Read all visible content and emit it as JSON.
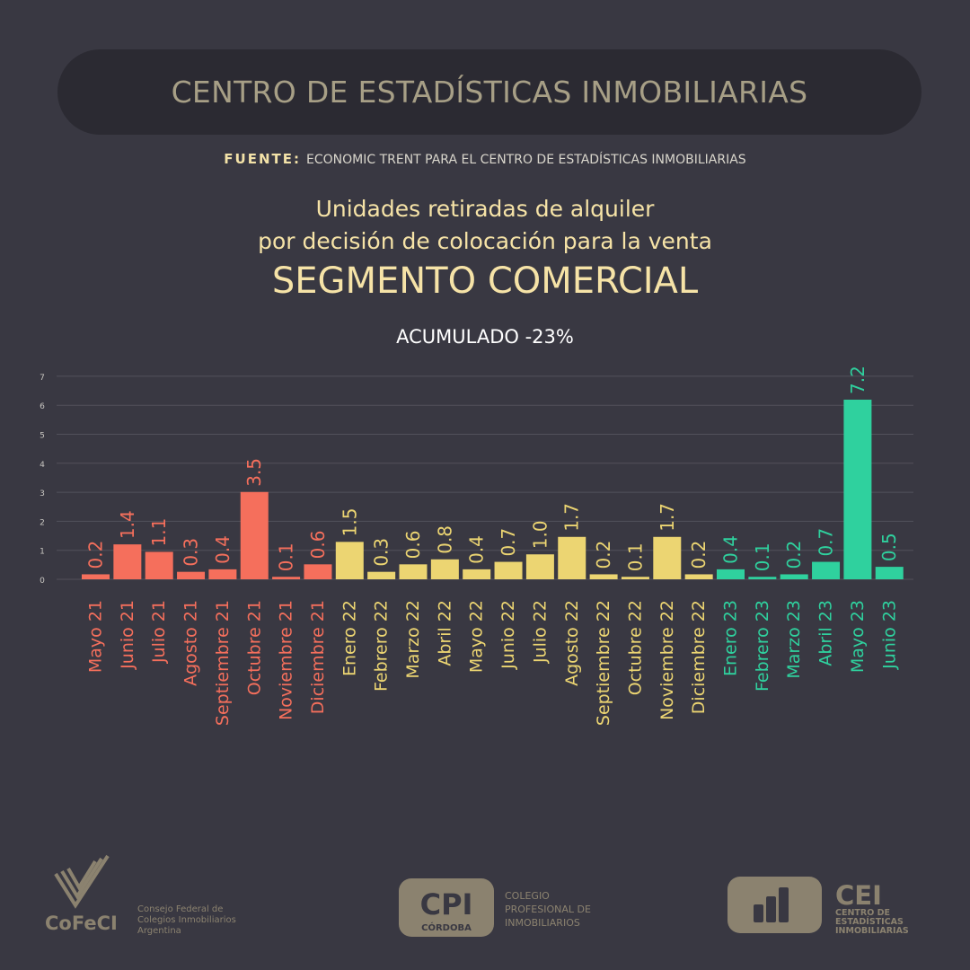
{
  "header": {
    "title": "CENTRO DE ESTADÍSTICAS INMOBILIARIAS"
  },
  "source": {
    "label": "FUENTE:",
    "text": "ECONOMIC TRENT PARA EL CENTRO DE ESTADÍSTICAS INMOBILIARIAS"
  },
  "titles": {
    "line1": "Unidades retiradas de alquiler",
    "line2": "por decisión de colocación para la venta",
    "segment": "SEGMENTO COMERCIAL",
    "accumulated": "ACUMULADO -23%"
  },
  "colors": {
    "y2021": "#f56f5c",
    "y2022": "#ecd572",
    "y2023": "#2fd19e",
    "background": "#393842"
  },
  "chart_data": {
    "type": "bar",
    "title": "Unidades retiradas de alquiler por decisión de colocación para la venta — SEGMENTO COMERCIAL",
    "xlabel": "",
    "ylabel": "",
    "ylim": [
      0,
      7
    ],
    "yticks": [
      0,
      1,
      2,
      3,
      4,
      5,
      6,
      7
    ],
    "grid": true,
    "categories": [
      "Mayo 21",
      "Junio 21",
      "Julio 21",
      "Agosto 21",
      "Septiembre 21",
      "Octubre 21",
      "Noviembre 21",
      "Diciembre 21",
      "Enero 22",
      "Febrero 22",
      "Marzo 22",
      "Abril 22",
      "Mayo 22",
      "Junio 22",
      "Julio 22",
      "Agosto 22",
      "Septiembre 22",
      "Octubre 22",
      "Noviembre 22",
      "Diciembre 22",
      "Enero 23",
      "Febrero 23",
      "Marzo 23",
      "Abril 23",
      "Mayo 23",
      "Junio 23"
    ],
    "values": [
      0.2,
      1.4,
      1.1,
      0.3,
      0.4,
      3.5,
      0.1,
      0.6,
      1.5,
      0.3,
      0.6,
      0.8,
      0.4,
      0.7,
      1.0,
      1.7,
      0.2,
      0.1,
      1.7,
      0.2,
      0.4,
      0.1,
      0.2,
      0.7,
      7.2,
      0.5
    ],
    "labels": [
      "0.2",
      "1.4",
      "1.1",
      "0.3",
      "0.4",
      "3.5",
      "0.1",
      "0.6",
      "1.5",
      "0.3",
      "0.6",
      "0.8",
      "0.4",
      "0.7",
      "1.0",
      "1.7",
      "0.2",
      "0.1",
      "1.7",
      "0.2",
      "0.4",
      "0.1",
      "0.2",
      "0.7",
      "7.2",
      "0.5"
    ],
    "groups": [
      "2021",
      "2021",
      "2021",
      "2021",
      "2021",
      "2021",
      "2021",
      "2021",
      "2022",
      "2022",
      "2022",
      "2022",
      "2022",
      "2022",
      "2022",
      "2022",
      "2022",
      "2022",
      "2022",
      "2022",
      "2023",
      "2023",
      "2023",
      "2023",
      "2023",
      "2023"
    ]
  },
  "footer": {
    "cofeci": {
      "name": "CoFeCI",
      "line1": "Consejo Federal de",
      "line2": "Colegios Inmobiliarios",
      "line3": "Argentina"
    },
    "cpi": {
      "badge": "CPI",
      "city": "CÓRDOBA",
      "line1": "COLEGIO",
      "line2": "PROFESIONAL DE",
      "line3": "INMOBILIARIOS"
    },
    "cei": {
      "name": "CEI",
      "line1": "CENTRO DE",
      "line2": "ESTADÍSTICAS",
      "line3": "INMOBILIARIAS"
    }
  }
}
